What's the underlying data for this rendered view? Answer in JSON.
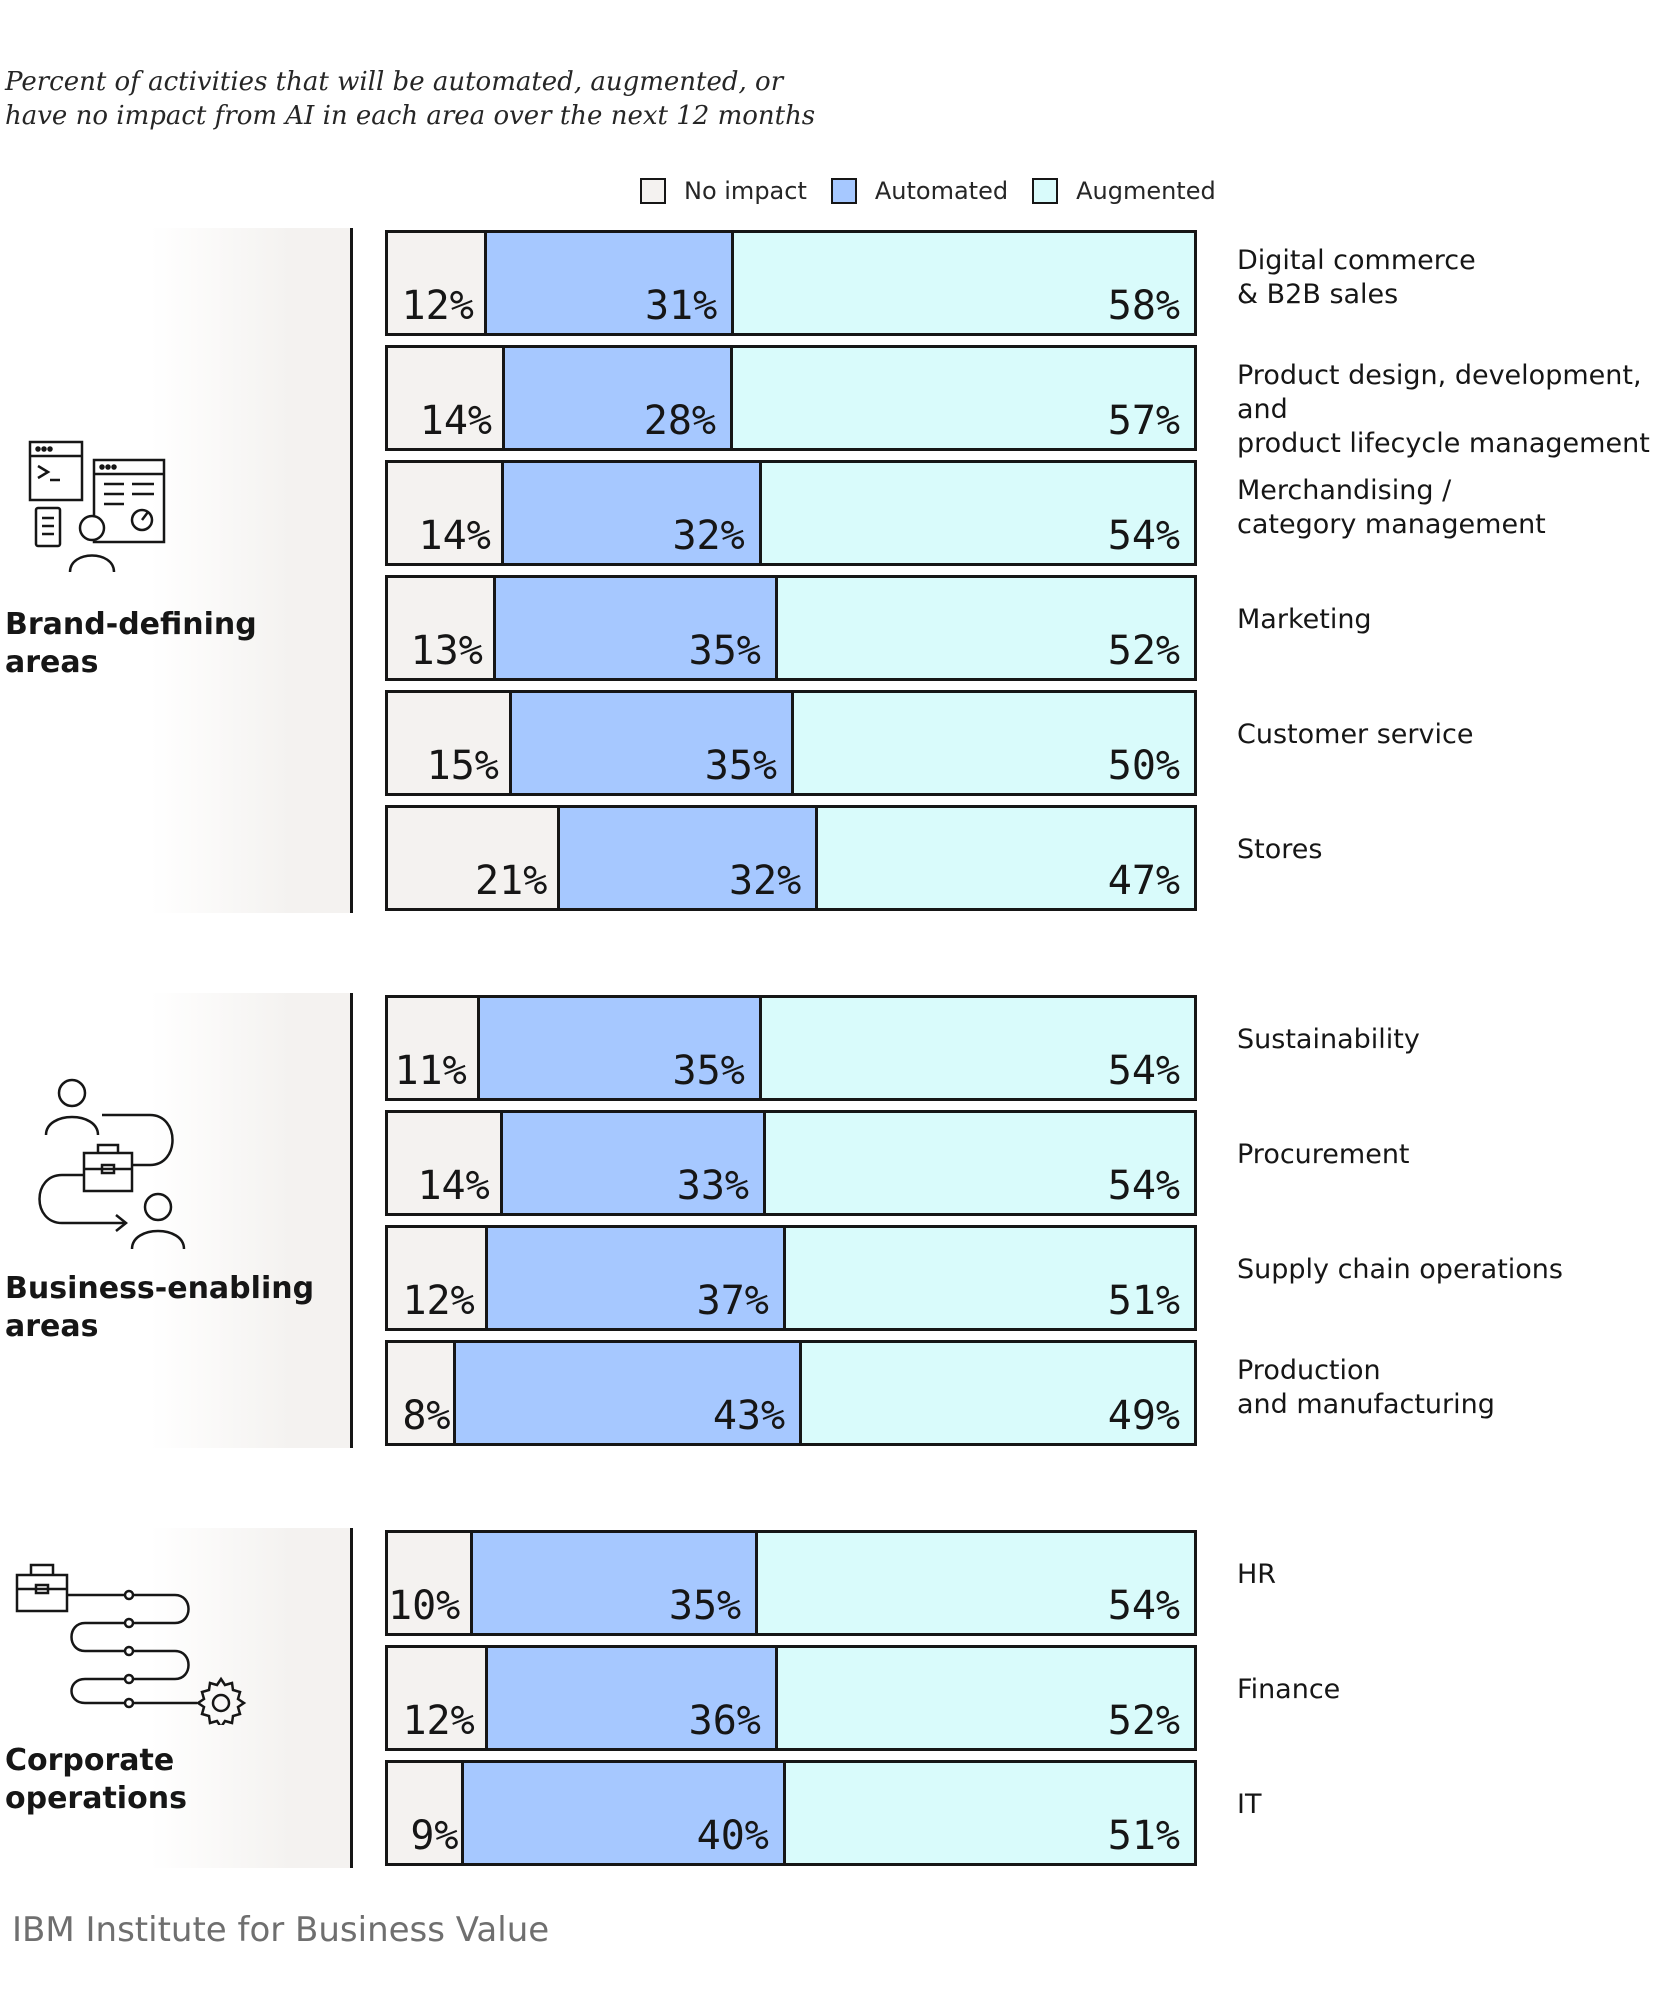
{
  "subtitle_lines": [
    "Percent of activities that will be automated, augmented, or",
    "have no impact from AI in each area over the next 12 months"
  ],
  "colors": {
    "no_impact": "#f4f2f0",
    "automated": "#a6c8ff",
    "augmented": "#d9fbfb",
    "border": "#161616",
    "footer": "#6f6f6f"
  },
  "chart_data": {
    "type": "bar",
    "orientation": "horizontal",
    "stacked": true,
    "legend": [
      "No impact",
      "Automated",
      "Augmented"
    ],
    "legend_position": "top",
    "unit": "%",
    "groups": [
      {
        "name": "Brand-defining areas",
        "icon": "software-developer-icon",
        "rows": [
          {
            "label": "Digital commerce\n& B2B sales",
            "values": [
              12,
              31,
              58
            ]
          },
          {
            "label": "Product design, development, and\nproduct lifecycle management",
            "values": [
              14,
              28,
              57
            ]
          },
          {
            "label": "Merchandising /\ncategory management",
            "values": [
              14,
              32,
              54
            ]
          },
          {
            "label": "Marketing",
            "values": [
              13,
              35,
              52
            ]
          },
          {
            "label": "Customer service",
            "values": [
              15,
              35,
              50
            ]
          },
          {
            "label": "Stores",
            "values": [
              21,
              32,
              47
            ]
          }
        ]
      },
      {
        "name": "Business-enabling areas",
        "icon": "workflow-people-icon",
        "rows": [
          {
            "label": "Sustainability",
            "values": [
              11,
              35,
              54
            ]
          },
          {
            "label": "Procurement",
            "values": [
              14,
              33,
              54
            ]
          },
          {
            "label": "Supply chain operations",
            "values": [
              12,
              37,
              51
            ]
          },
          {
            "label": "Production\nand manufacturing",
            "values": [
              8,
              43,
              49
            ]
          }
        ]
      },
      {
        "name": "Corporate operations",
        "icon": "process-gear-icon",
        "rows": [
          {
            "label": "HR",
            "values": [
              10,
              35,
              54
            ]
          },
          {
            "label": "Finance",
            "values": [
              12,
              36,
              52
            ]
          },
          {
            "label": "IT",
            "values": [
              9,
              40,
              51
            ]
          }
        ]
      }
    ]
  },
  "footer": "IBM Institute for Business Value"
}
